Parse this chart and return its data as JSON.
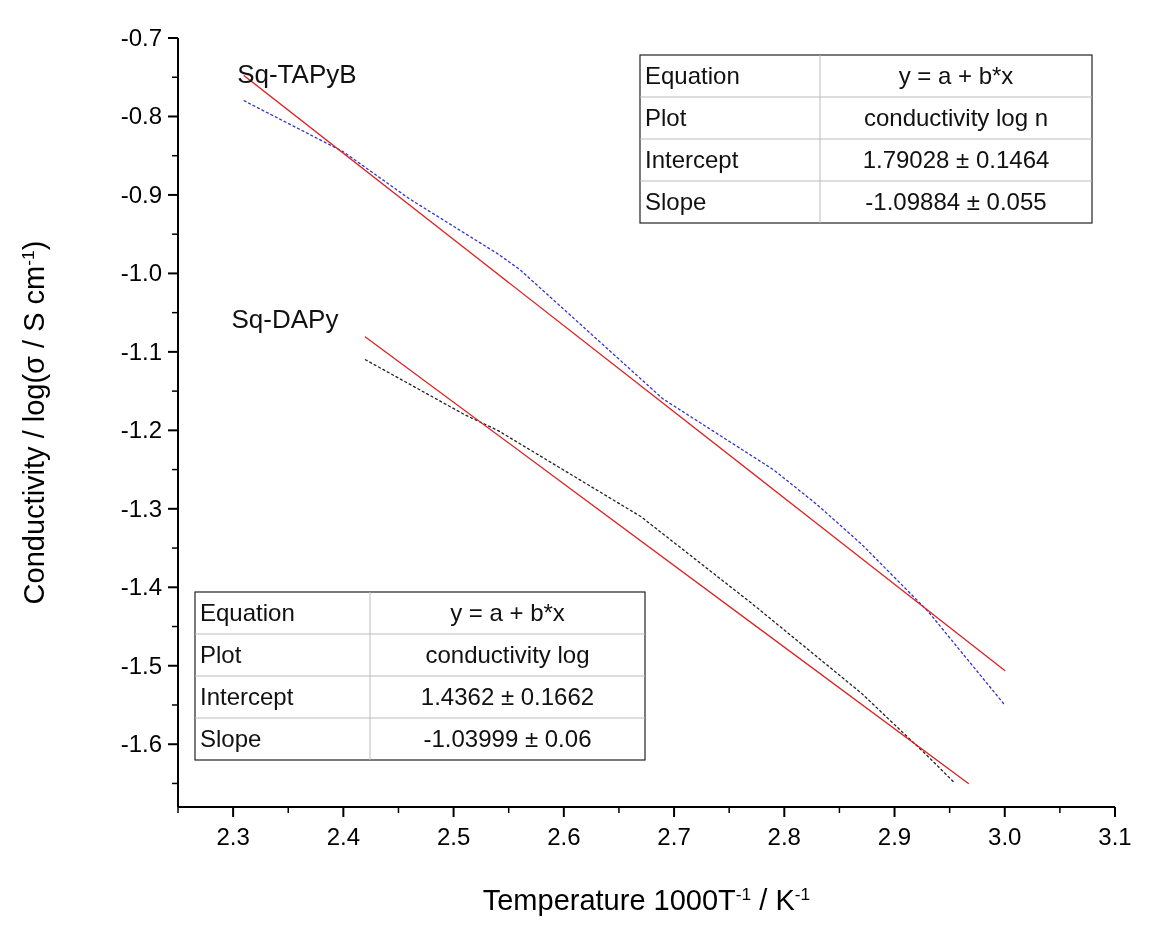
{
  "chart_data": {
    "type": "line",
    "xlabel": "Temperature 1000T$^{-1}$ / K$^{-1}$",
    "ylabel": "Conductivity / log(σ / S cm$^{-1}$)",
    "xlim": [
      2.25,
      3.1
    ],
    "xticks": [
      2.3,
      2.4,
      2.5,
      2.6,
      2.7,
      2.8,
      2.9,
      {
        "value": 3.0,
        "label": "3.0"
      },
      3.1
    ],
    "ylim": [
      -1.68,
      -0.7
    ],
    "yticks": [
      -0.7,
      -0.8,
      -0.9,
      {
        "value": -1.0,
        "label": "-1.0"
      },
      -1.1,
      -1.2,
      -1.3,
      -1.4,
      -1.5,
      -1.6
    ],
    "grid": false,
    "marker": "none",
    "series": [
      {
        "name": "Sq-TAPyB",
        "color": "#3333cc",
        "line_style": "dotted",
        "x": [
          2.31,
          2.4,
          2.46,
          2.54,
          2.56,
          2.69,
          2.79,
          2.83,
          2.87,
          2.93,
          3.0
        ],
        "values": [
          -0.78,
          -0.845,
          -0.905,
          -0.975,
          -0.995,
          -1.16,
          -1.25,
          -1.295,
          -1.345,
          -1.43,
          -1.55
        ]
      },
      {
        "color": "#dd2222",
        "line_style": "solid",
        "x": [
          2.31,
          3.0
        ],
        "values": [
          -0.748,
          -1.506
        ]
      },
      {
        "name": "Sq-DAPy",
        "color": "#222222",
        "line_style": "dotted",
        "x": [
          2.42,
          2.51,
          2.54,
          2.67,
          2.77,
          2.87,
          2.93,
          2.955
        ],
        "values": [
          -1.11,
          -1.18,
          -1.2,
          -1.31,
          -1.42,
          -1.535,
          -1.615,
          -1.65
        ]
      },
      {
        "color": "#dd2222",
        "line_style": "solid",
        "x": [
          2.42,
          2.967
        ],
        "values": [
          -1.081,
          -1.65
        ]
      }
    ],
    "annotations": [
      "Equation",
      "y = a + b*x",
      "Plot",
      "conductivity log n",
      "Intercept",
      "1.79028 ± 0.1464",
      "Slope",
      "-1.09884 ± 0.055",
      "Equation",
      "y = a + b*x",
      "Plot",
      "conductivity log",
      "Intercept",
      "1.4362 ± 0.1662",
      "Slope",
      "-1.03999 ± 0.06"
    ]
  }
}
